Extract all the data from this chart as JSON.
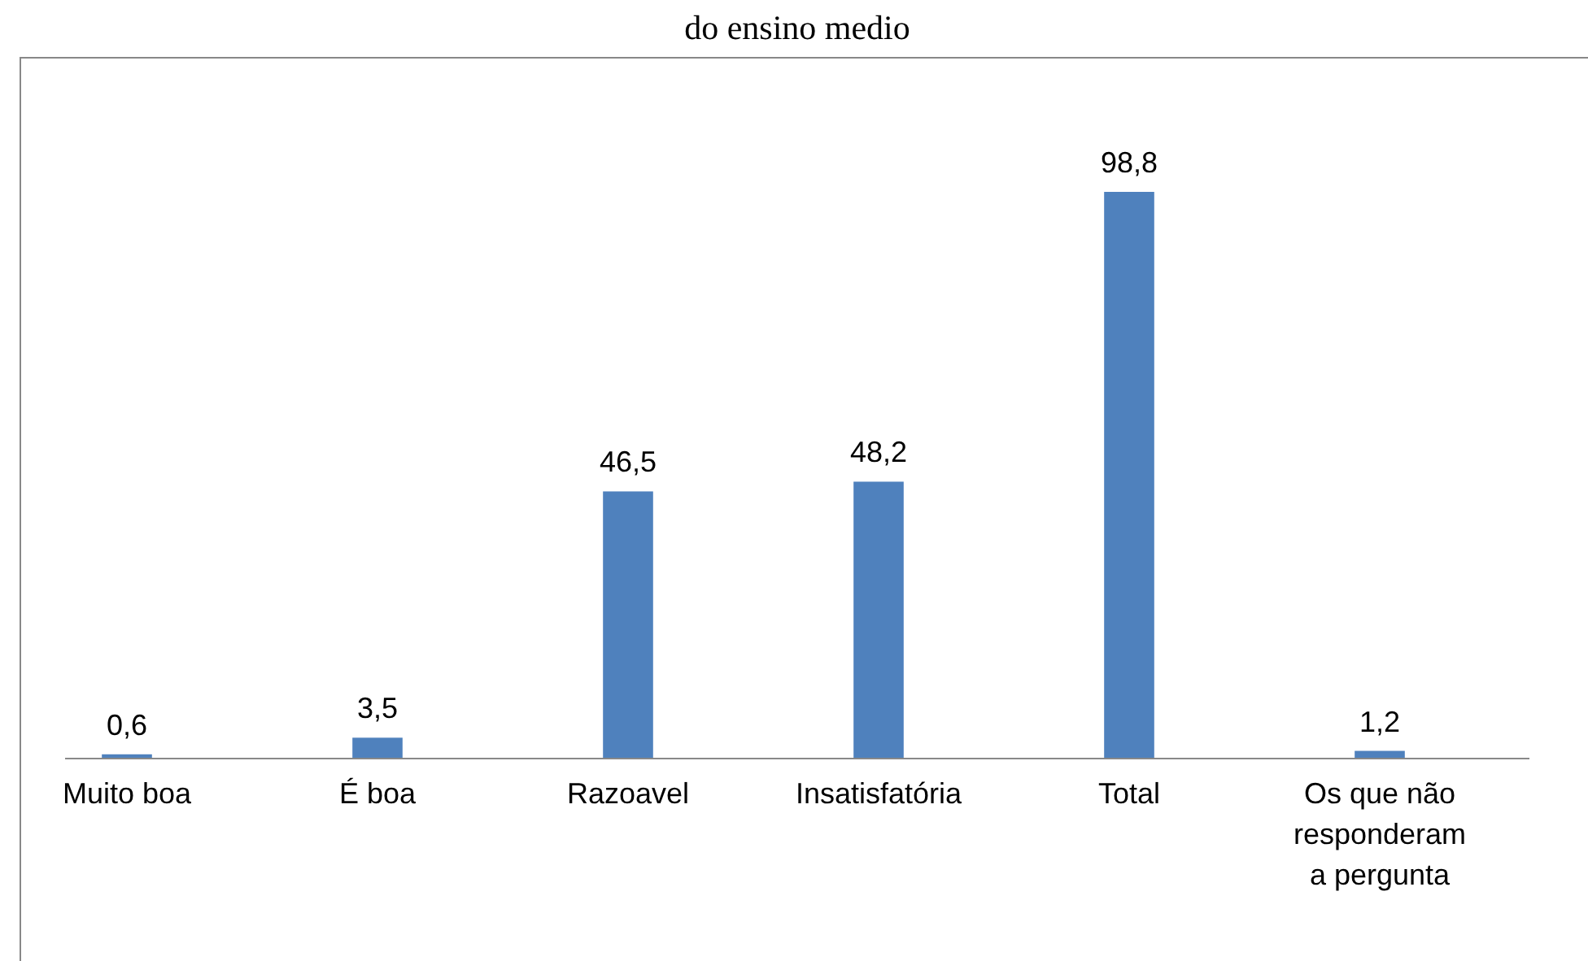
{
  "chart_data": {
    "type": "bar",
    "title": "do ensino medio",
    "categories": [
      "Muito boa",
      "É boa",
      "Razoavel",
      "Insatisfatória",
      "Total",
      "Os que não responderam a pergunta"
    ],
    "values": [
      0.6,
      3.5,
      46.5,
      48.2,
      98.8,
      1.2
    ],
    "value_labels": [
      "0,6",
      "3,5",
      "46,5",
      "48,2",
      "98,8",
      "1,2"
    ],
    "color": "#4f81bd"
  }
}
